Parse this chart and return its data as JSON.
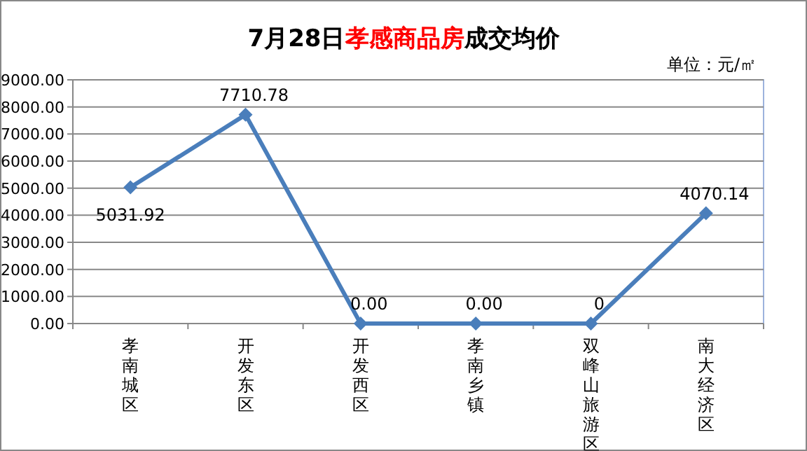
{
  "chart_data": {
    "type": "line",
    "title": "7月28日孝感商品房成交均价",
    "annotations": [
      "单位：元/㎡"
    ],
    "categories": [
      "孝南城区",
      "开发东区",
      "开发西区",
      "孝南乡镇",
      "双峰山旅游区",
      "南大经济区"
    ],
    "series": [
      {
        "color": "#4a7ebb",
        "values": [
          5031.92,
          7710.78,
          0,
          0,
          0,
          4070.14
        ],
        "value_labels": [
          "5031.92",
          "7710.78",
          "0.00",
          "0.00",
          "0",
          "4070.14"
        ]
      }
    ],
    "ylim": [
      0,
      9000
    ],
    "yticks": [
      {
        "value": 0,
        "label": "0.00"
      },
      {
        "value": 1000,
        "label": "1000.00"
      },
      {
        "value": 2000,
        "label": "2000.00"
      },
      {
        "value": 3000,
        "label": "3000.00"
      },
      {
        "value": 4000,
        "label": "4000.00"
      },
      {
        "value": 5000,
        "label": "5000.00"
      },
      {
        "value": 6000,
        "label": "6000.00"
      },
      {
        "value": 7000,
        "label": "7000.00"
      },
      {
        "value": 8000,
        "label": "8000.00"
      },
      {
        "value": 9000,
        "label": "9000.00"
      }
    ],
    "grid": "y",
    "marker": "diamond",
    "line_style": "solid"
  }
}
